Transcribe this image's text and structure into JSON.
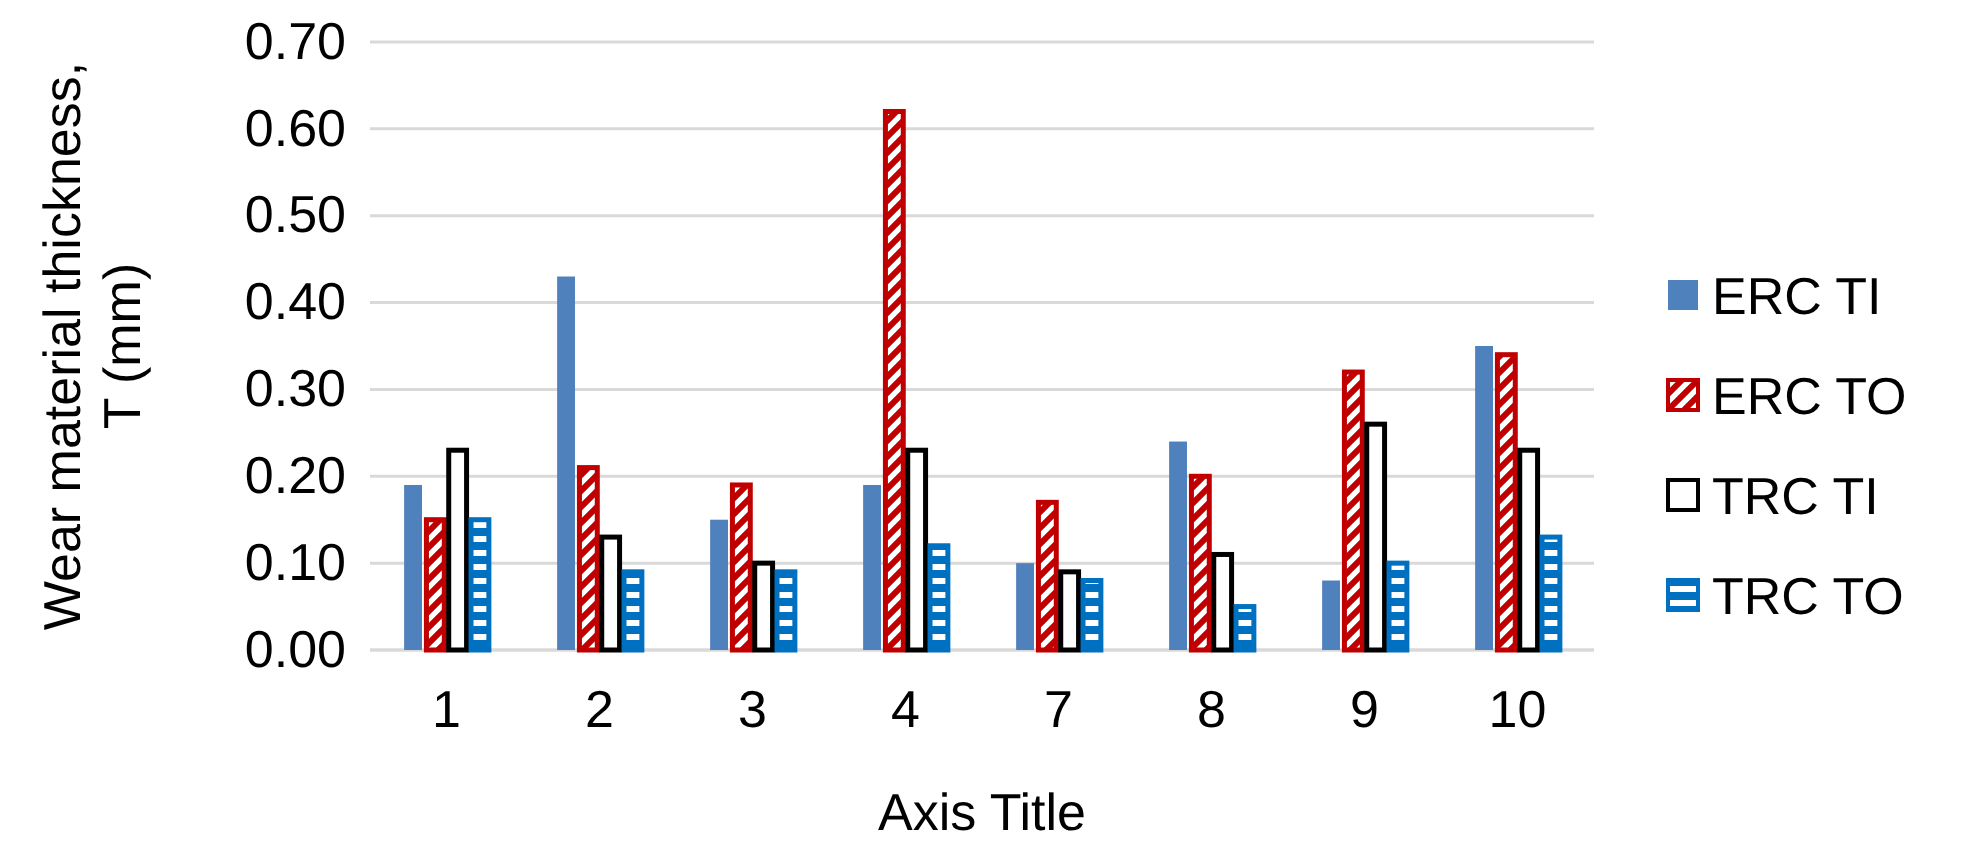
{
  "chart_data": {
    "type": "bar",
    "xlabel": "Axis Title",
    "ylabel": "Wear material thickness, T (mm)",
    "categories": [
      "1",
      "2",
      "3",
      "4",
      "7",
      "8",
      "9",
      "10"
    ],
    "series": [
      {
        "name": "ERC TI",
        "color": "#4f81bd",
        "values": [
          0.19,
          0.43,
          0.15,
          0.19,
          0.1,
          0.24,
          0.08,
          0.35
        ]
      },
      {
        "name": "ERC TO",
        "color": "#c00000",
        "values": [
          0.15,
          0.21,
          0.19,
          0.62,
          0.17,
          0.2,
          0.32,
          0.34
        ]
      },
      {
        "name": "TRC TI",
        "color": "#000000",
        "values": [
          0.23,
          0.13,
          0.1,
          0.23,
          0.09,
          0.11,
          0.26,
          0.23
        ]
      },
      {
        "name": "TRC TO",
        "color": "#0070c0",
        "values": [
          0.15,
          0.09,
          0.09,
          0.12,
          0.08,
          0.05,
          0.1,
          0.13
        ]
      }
    ],
    "ylim": [
      0,
      0.7
    ],
    "yticks": [
      {
        "value": 0,
        "label": "0.00"
      },
      {
        "value": 0.1,
        "label": "0.10"
      },
      {
        "value": 0.2,
        "label": "0.20"
      },
      {
        "value": 0.3,
        "label": "0.30"
      },
      {
        "value": 0.4,
        "label": "0.40"
      },
      {
        "value": 0.5,
        "label": "0.50"
      },
      {
        "value": 0.6,
        "label": "0.60"
      },
      {
        "value": 0.7,
        "label": "0.70"
      }
    ],
    "grid": "y",
    "legend": "right"
  }
}
